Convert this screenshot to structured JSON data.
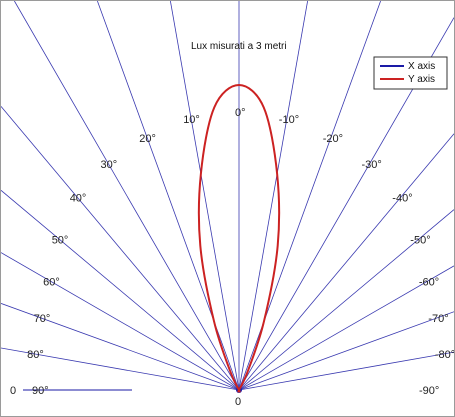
{
  "chart_data": {
    "type": "polar-line",
    "title": "Lux misurati a  3  metri",
    "angle_labels": [
      {
        "deg": 0,
        "text": "0°"
      },
      {
        "deg": 10,
        "text": "10°"
      },
      {
        "deg": -10,
        "text": "-10°"
      },
      {
        "deg": 20,
        "text": "20°"
      },
      {
        "deg": -20,
        "text": "-20°"
      },
      {
        "deg": 30,
        "text": "30°"
      },
      {
        "deg": -30,
        "text": "-30°"
      },
      {
        "deg": 40,
        "text": "40°"
      },
      {
        "deg": -40,
        "text": "-40°"
      },
      {
        "deg": 50,
        "text": "50°"
      },
      {
        "deg": -50,
        "text": "-50°"
      },
      {
        "deg": 60,
        "text": "60°"
      },
      {
        "deg": -60,
        "text": "-60°"
      },
      {
        "deg": 70,
        "text": "70°"
      },
      {
        "deg": -70,
        "text": "-70°"
      },
      {
        "deg": 80,
        "text": "80°"
      },
      {
        "deg": -80,
        "text": "-80°"
      },
      {
        "deg": 90,
        "text": "90°"
      },
      {
        "deg": -90,
        "text": "-90°"
      }
    ],
    "spoke_angles_deg": [
      -90,
      -80,
      -70,
      -60,
      -50,
      -40,
      -30,
      -20,
      -10,
      0,
      10,
      20,
      30,
      40,
      50,
      60,
      70,
      80,
      90
    ],
    "origin_labels": {
      "left": "0",
      "center": "0"
    },
    "radial_max": 1.0,
    "legend": {
      "position": "top-right",
      "entries": [
        {
          "name": "X axis",
          "color": "#1a1aa6"
        },
        {
          "name": "Y axis",
          "color": "#cc2222"
        }
      ]
    },
    "series": [
      {
        "name": "X axis",
        "color": "#1a1aa6",
        "angles_deg": [
          -90,
          -45,
          0,
          45,
          90
        ],
        "r": [
          0.0,
          0.0,
          0.0,
          0.0,
          0.0
        ]
      },
      {
        "name": "Y axis",
        "color": "#cc2222",
        "angles_deg": [
          -90,
          -80,
          -70,
          -60,
          -50,
          -40,
          -30,
          -25,
          -20,
          -15,
          -10,
          -5,
          0,
          5,
          10,
          15,
          20,
          25,
          30,
          40,
          50,
          60,
          70,
          80,
          90
        ],
        "r": [
          0.0,
          0.0,
          0.0,
          0.0,
          0.0,
          0.0,
          0.0,
          0.07,
          0.24,
          0.49,
          0.72,
          0.93,
          1.0,
          0.93,
          0.72,
          0.49,
          0.24,
          0.07,
          0.0,
          0.0,
          0.0,
          0.0,
          0.0,
          0.0,
          0.0
        ]
      }
    ]
  }
}
